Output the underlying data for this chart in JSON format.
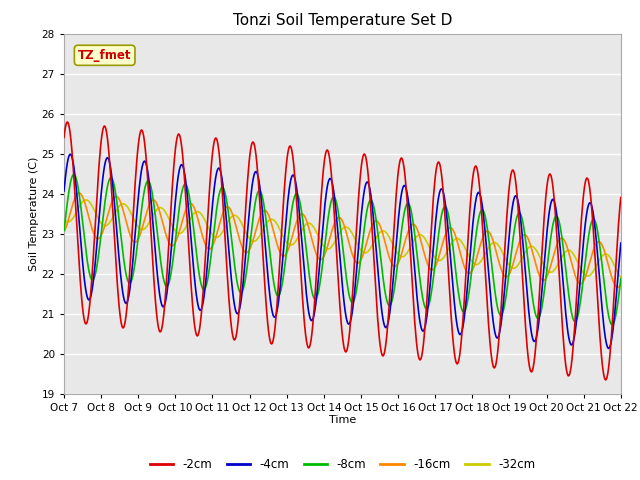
{
  "title": "Tonzi Soil Temperature Set D",
  "xlabel": "Time",
  "ylabel": "Soil Temperature (C)",
  "ylim": [
    19.0,
    28.0
  ],
  "yticks": [
    19.0,
    20.0,
    21.0,
    22.0,
    23.0,
    24.0,
    25.0,
    26.0,
    27.0,
    28.0
  ],
  "series": {
    "-2cm": {
      "color": "#dd0000",
      "lw": 1.2
    },
    "-4cm": {
      "color": "#0000cc",
      "lw": 1.2
    },
    "-8cm": {
      "color": "#00bb00",
      "lw": 1.2
    },
    "-16cm": {
      "color": "#ff8800",
      "lw": 1.2
    },
    "-32cm": {
      "color": "#cccc00",
      "lw": 1.2
    }
  },
  "xtick_labels": [
    "Oct 7",
    "Oct 8",
    "Oct 9",
    "Oct 10",
    "Oct 11",
    "Oct 12",
    "Oct 13",
    "Oct 14",
    "Oct 15",
    "Oct 16",
    "Oct 17",
    "Oct 18",
    "Oct 19",
    "Oct 20",
    "Oct 21",
    "Oct 22"
  ],
  "annotation": "TZ_fmet",
  "annotation_color": "#cc0000",
  "annotation_bg": "#ffffcc",
  "plot_bg": "#e8e8e8",
  "grid_color": "#ffffff",
  "title_fontsize": 11,
  "axis_label_fontsize": 8,
  "tick_fontsize": 7.5
}
